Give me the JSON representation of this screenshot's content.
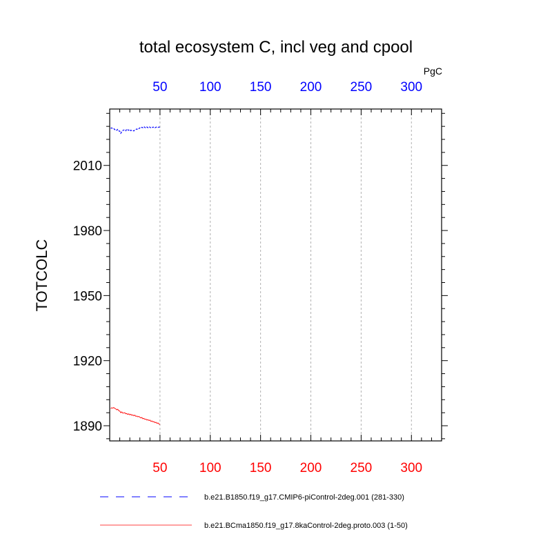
{
  "chart_data": {
    "type": "line",
    "title": "total ecosystem C, incl veg and cpool",
    "ylabel": "TOTCOLC",
    "units_label": "PgC",
    "xlim": [
      0,
      330
    ],
    "ylim": [
      1883,
      2036
    ],
    "x_ticks": [
      50,
      100,
      150,
      200,
      250,
      300
    ],
    "y_ticks": [
      1890,
      1920,
      1950,
      1980,
      2010
    ],
    "grid": "dashed vertical at x ticks",
    "axis_colors": {
      "bottom": "#ff0000",
      "top": "#0000ff"
    },
    "series": [
      {
        "name": "b.e21.B1850.f19_g17.CMIP6-piControl-2deg.001 (281-330)",
        "color": "#0000ff",
        "dash": "dashed",
        "axis": "top",
        "x": [
          1,
          2,
          3,
          4,
          5,
          6,
          7,
          8,
          9,
          10,
          11,
          12,
          13,
          14,
          15,
          16,
          17,
          18,
          19,
          20,
          21,
          22,
          23,
          24,
          25,
          26,
          27,
          28,
          29,
          30,
          31,
          32,
          33,
          34,
          35,
          36,
          37,
          38,
          39,
          40,
          41,
          42,
          43,
          44,
          45,
          46,
          47,
          48,
          49,
          50
        ],
        "y": [
          2027.1,
          2027.3,
          2026.9,
          2027.0,
          2026.5,
          2026.7,
          2026.2,
          2026.6,
          2025.9,
          2025.8,
          2024.8,
          2025.6,
          2026.1,
          2026.3,
          2026.5,
          2026.0,
          2026.8,
          2026.4,
          2026.2,
          2026.6,
          2026.0,
          2026.3,
          2026.1,
          2025.9,
          2026.4,
          2026.6,
          2026.8,
          2026.5,
          2027.0,
          2027.3,
          2027.1,
          2027.6,
          2027.4,
          2027.9,
          2027.5,
          2027.2,
          2027.7,
          2027.4,
          2027.9,
          2027.6,
          2027.3,
          2027.7,
          2027.5,
          2027.8,
          2027.4,
          2027.6,
          2027.8,
          2027.5,
          2027.7,
          2027.6
        ]
      },
      {
        "name": "b.e21.BCma1850.f19_g17.8kaControl-2deg.proto.003 (1-50)",
        "color": "#ff0000",
        "dash": "solid",
        "axis": "bottom",
        "x": [
          1,
          2,
          3,
          4,
          5,
          6,
          7,
          8,
          9,
          10,
          11,
          12,
          13,
          14,
          15,
          16,
          17,
          18,
          19,
          20,
          21,
          22,
          23,
          24,
          25,
          26,
          27,
          28,
          29,
          30,
          31,
          32,
          33,
          34,
          35,
          36,
          37,
          38,
          39,
          40,
          41,
          42,
          43,
          44,
          45,
          46,
          47,
          48,
          49,
          50
        ],
        "y": [
          1897.9,
          1898.3,
          1898.1,
          1898.4,
          1898.0,
          1897.8,
          1897.3,
          1897.6,
          1896.9,
          1896.8,
          1896.0,
          1896.4,
          1895.8,
          1895.9,
          1896.0,
          1895.5,
          1895.6,
          1895.2,
          1895.5,
          1895.0,
          1895.3,
          1894.8,
          1895.0,
          1894.6,
          1894.9,
          1894.3,
          1894.5,
          1894.1,
          1894.3,
          1893.9,
          1893.6,
          1893.8,
          1893.2,
          1893.4,
          1892.9,
          1893.1,
          1892.6,
          1892.8,
          1892.4,
          1892.6,
          1892.0,
          1892.2,
          1891.8,
          1891.9,
          1891.4,
          1891.6,
          1891.1,
          1891.3,
          1890.8,
          1890.5
        ]
      }
    ]
  }
}
